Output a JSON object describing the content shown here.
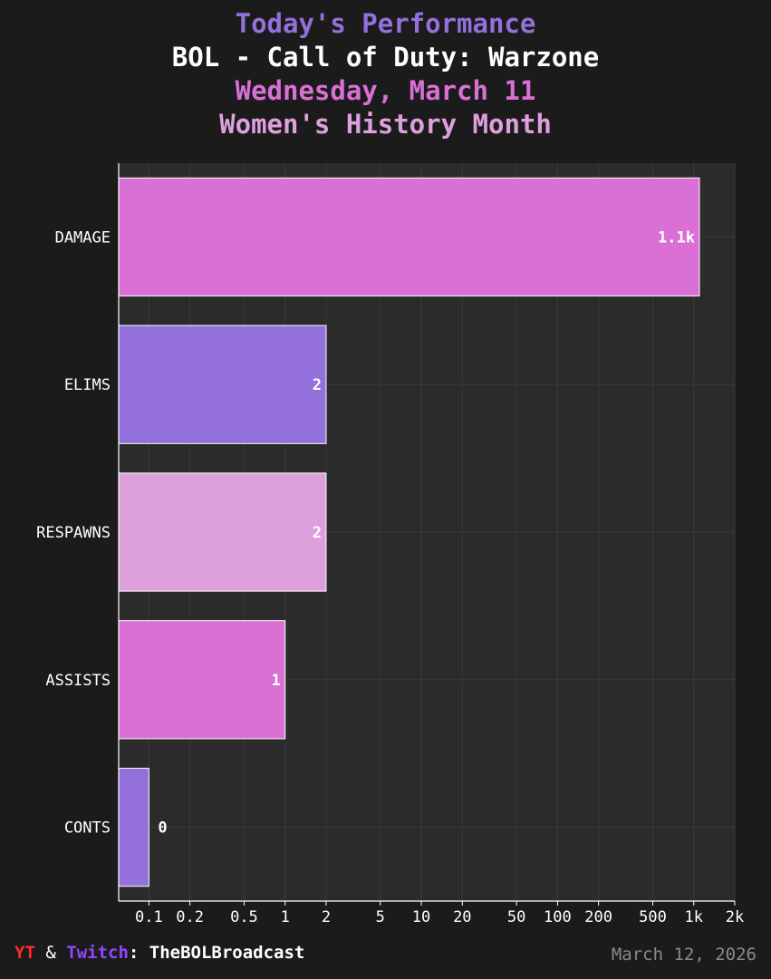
{
  "chart_data": {
    "type": "bar",
    "orientation": "horizontal",
    "title": "Today's Performance",
    "subtitle_lines": [
      "BOL - Call of Duty: Warzone",
      "Wednesday, March 11",
      "Women's History Month"
    ],
    "categories": [
      "DAMAGE",
      "ELIMS",
      "RESPAWNS",
      "ASSISTS",
      "CONTS"
    ],
    "values": [
      1100,
      2,
      2,
      1,
      0
    ],
    "data_labels": [
      "1.1k",
      "2",
      "2",
      "1",
      "0"
    ],
    "colors": [
      "#da70d6",
      "#9370db",
      "#dda0dd",
      "#da70d6",
      "#9370db"
    ],
    "x_scale": "log",
    "xlim": [
      0.06,
      2000
    ],
    "x_ticks": [
      0.1,
      0.2,
      0.5,
      1,
      2,
      5,
      10,
      20,
      50,
      100,
      200,
      500,
      1000,
      2000
    ],
    "x_tick_labels": [
      "0.1",
      "0.2",
      "0.5",
      "1",
      "2",
      "5",
      "10",
      "20",
      "50",
      "100",
      "200",
      "500",
      "1k",
      "2k"
    ],
    "grid": true,
    "legend": "none",
    "plot_background": "#2b2b2b",
    "page_background": "#1b1b1b"
  },
  "footer": {
    "yt": "YT",
    "amp": "&",
    "twitch": "Twitch",
    "handle": ": TheBOLBroadcast",
    "date": "March 12, 2026"
  }
}
